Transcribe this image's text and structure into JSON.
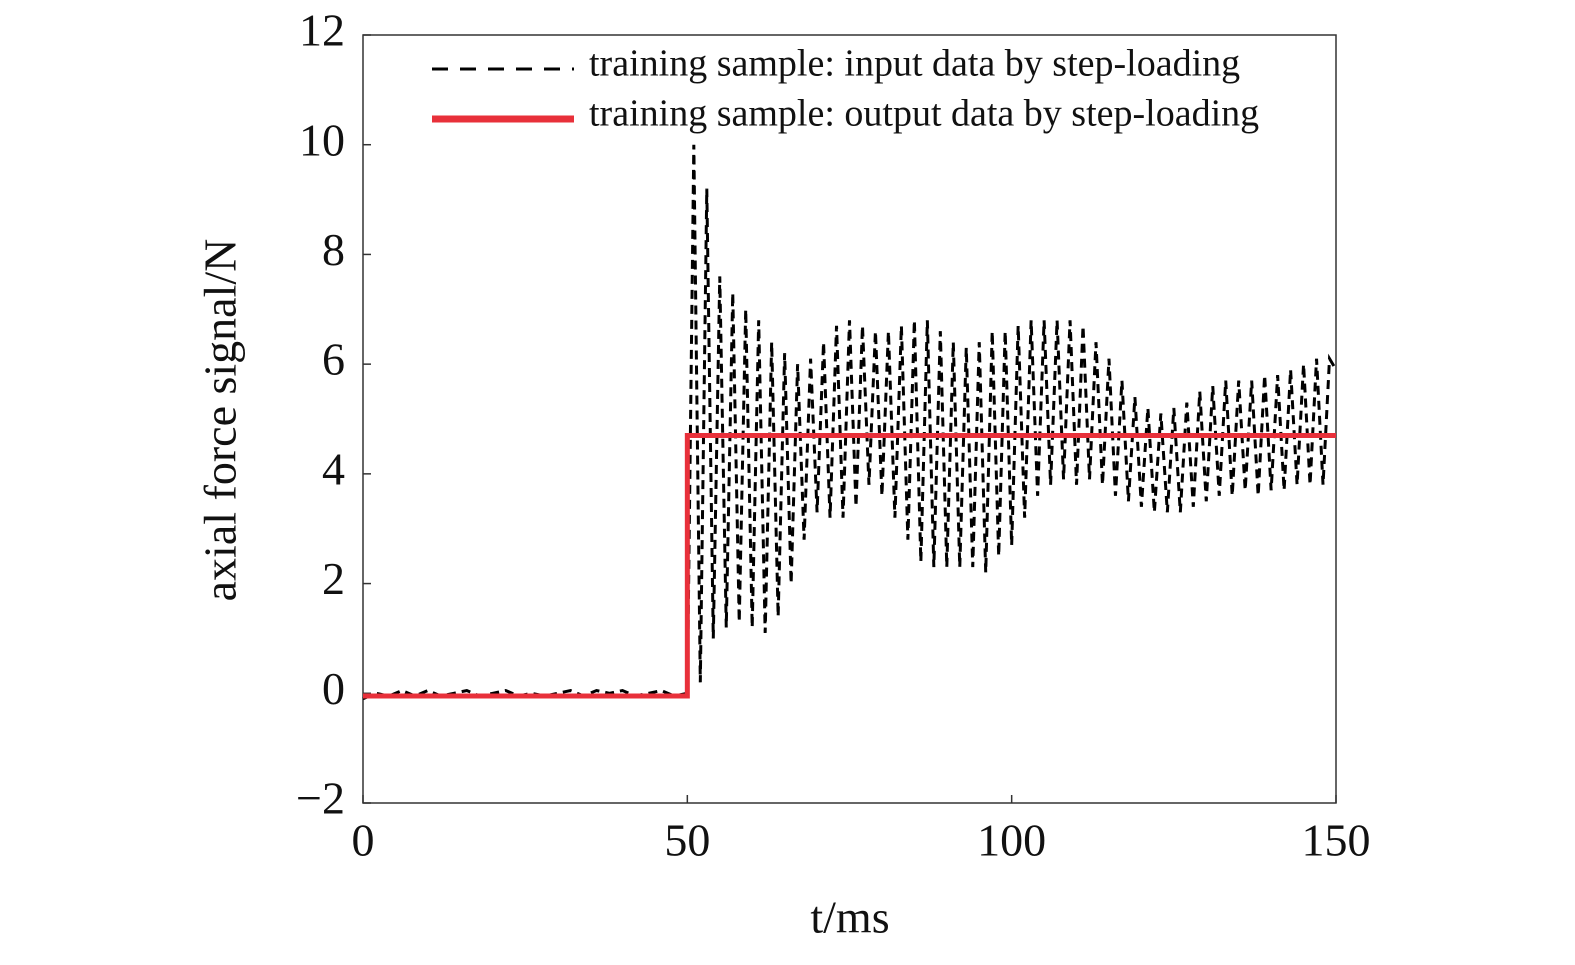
{
  "chart_data": {
    "type": "line",
    "xlabel": "t/ms",
    "ylabel": "axial force signal/N",
    "xlim": [
      0,
      150
    ],
    "xticks": [
      0,
      50,
      100,
      150
    ],
    "ylim": [
      -2,
      12
    ],
    "yticks": [
      {
        "value": -2,
        "label": "−2"
      },
      0,
      2,
      4,
      6,
      8,
      10,
      12
    ],
    "legend": "upper right",
    "series": [
      {
        "name": "training sample: input data by step-loading",
        "color": "#000000",
        "dash": true,
        "x": [
          0,
          2,
          4,
          6,
          8,
          10,
          12,
          14,
          16,
          18,
          20,
          22,
          24,
          26,
          28,
          30,
          32,
          34,
          36,
          38,
          40,
          42,
          44,
          46,
          48,
          50,
          51,
          52,
          53,
          54,
          55,
          56,
          57,
          58,
          59,
          60,
          61,
          62,
          63,
          64,
          65,
          66,
          67,
          68,
          69,
          70,
          71,
          72,
          73,
          74,
          75,
          76,
          77,
          78,
          79,
          80,
          81,
          82,
          83,
          84,
          85,
          86,
          87,
          88,
          89,
          90,
          91,
          92,
          93,
          94,
          95,
          96,
          97,
          98,
          99,
          100,
          101,
          102,
          103,
          104,
          105,
          106,
          107,
          108,
          109,
          110,
          111,
          112,
          113,
          114,
          115,
          116,
          117,
          118,
          119,
          120,
          121,
          122,
          123,
          124,
          125,
          126,
          127,
          128,
          129,
          130,
          131,
          132,
          133,
          134,
          135,
          136,
          137,
          138,
          139,
          140,
          141,
          142,
          143,
          144,
          145,
          146,
          147,
          148,
          149,
          150
        ],
        "values": [
          -0.1,
          0.0,
          -0.05,
          0.05,
          -0.05,
          0.05,
          -0.05,
          0.0,
          0.05,
          -0.05,
          0.0,
          0.05,
          -0.05,
          0.0,
          -0.05,
          0.0,
          0.05,
          -0.05,
          0.05,
          0.0,
          0.05,
          -0.05,
          0.0,
          0.05,
          -0.05,
          0.0,
          10,
          0.2,
          9.2,
          1.0,
          7.6,
          1.2,
          7.3,
          1.3,
          7.0,
          1.2,
          6.8,
          1.1,
          6.4,
          1.4,
          6.2,
          2.0,
          6.0,
          2.8,
          6.1,
          3.3,
          6.4,
          3.2,
          6.7,
          3.2,
          6.8,
          3.4,
          6.7,
          3.8,
          6.6,
          3.6,
          6.6,
          3.2,
          6.7,
          2.8,
          6.8,
          2.4,
          6.8,
          2.3,
          6.6,
          2.3,
          6.4,
          2.3,
          6.3,
          2.3,
          6.4,
          2.2,
          6.6,
          2.5,
          6.6,
          2.7,
          6.7,
          3.2,
          6.8,
          3.6,
          6.8,
          3.8,
          6.8,
          3.9,
          6.8,
          3.8,
          6.7,
          3.9,
          6.4,
          3.8,
          6.1,
          3.6,
          5.7,
          3.5,
          5.4,
          3.4,
          5.2,
          3.3,
          5.1,
          3.3,
          5.2,
          3.3,
          5.3,
          3.4,
          5.5,
          3.5,
          5.6,
          3.6,
          5.7,
          3.6,
          5.7,
          3.7,
          5.7,
          3.6,
          5.8,
          3.7,
          5.8,
          3.7,
          5.9,
          3.8,
          6.0,
          3.8,
          6.1,
          3.8,
          6.1,
          5.9
        ]
      },
      {
        "name": "training sample: output data by step-loading",
        "color": "#e8303a",
        "dash": false,
        "x": [
          0,
          50,
          50,
          150
        ],
        "values": [
          -0.05,
          -0.05,
          4.7,
          4.7
        ]
      }
    ]
  }
}
